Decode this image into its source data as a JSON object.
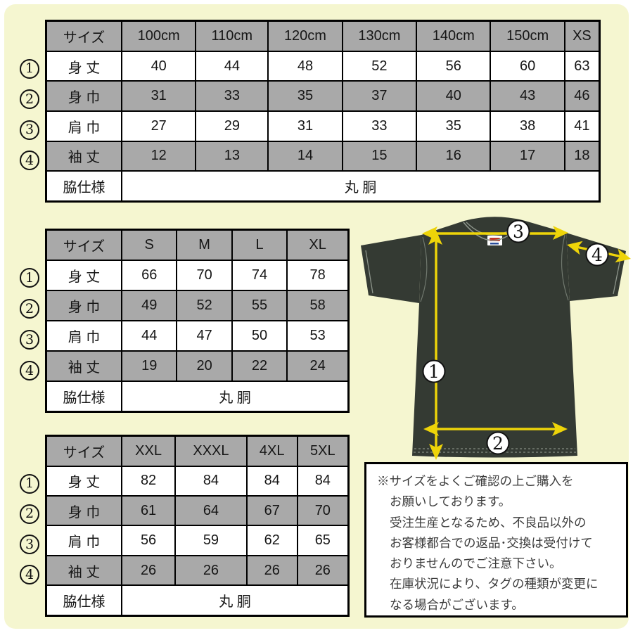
{
  "colors": {
    "background": "#f5f6d0",
    "row_shade": "#a9a9a9",
    "table_border": "#000000",
    "shirt": "#343a33",
    "arrow_yellow": "#eed409",
    "stitch": "#8d958b"
  },
  "marks": [
    "1",
    "2",
    "3",
    "4"
  ],
  "tables": [
    {
      "name": "kids-xs",
      "header": [
        "サイズ",
        "100cm",
        "110cm",
        "120cm",
        "130cm",
        "140cm",
        "150cm",
        "XS"
      ],
      "rows": [
        {
          "label": "身 丈",
          "values": [
            "40",
            "44",
            "48",
            "52",
            "56",
            "60",
            "63"
          ]
        },
        {
          "label": "身 巾",
          "values": [
            "31",
            "33",
            "35",
            "37",
            "40",
            "43",
            "46"
          ]
        },
        {
          "label": "肩 巾",
          "values": [
            "27",
            "29",
            "31",
            "33",
            "35",
            "38",
            "41"
          ]
        },
        {
          "label": "袖 丈",
          "values": [
            "12",
            "13",
            "14",
            "15",
            "16",
            "17",
            "18"
          ]
        }
      ],
      "spec_label": "脇仕様",
      "spec_value": "丸 胴"
    },
    {
      "name": "s-xl",
      "header": [
        "サイズ",
        "S",
        "M",
        "L",
        "XL"
      ],
      "rows": [
        {
          "label": "身 丈",
          "values": [
            "66",
            "70",
            "74",
            "78"
          ]
        },
        {
          "label": "身 巾",
          "values": [
            "49",
            "52",
            "55",
            "58"
          ]
        },
        {
          "label": "肩 巾",
          "values": [
            "44",
            "47",
            "50",
            "53"
          ]
        },
        {
          "label": "袖 丈",
          "values": [
            "19",
            "20",
            "22",
            "24"
          ]
        }
      ],
      "spec_label": "脇仕様",
      "spec_value": "丸 胴"
    },
    {
      "name": "xxl-5xl",
      "header": [
        "サイズ",
        "XXL",
        "XXXL",
        "4XL",
        "5XL"
      ],
      "rows": [
        {
          "label": "身 丈",
          "values": [
            "82",
            "84",
            "84",
            "84"
          ]
        },
        {
          "label": "身 巾",
          "values": [
            "61",
            "64",
            "67",
            "70"
          ]
        },
        {
          "label": "肩 巾",
          "values": [
            "56",
            "59",
            "62",
            "65"
          ]
        },
        {
          "label": "袖 丈",
          "values": [
            "26",
            "26",
            "26",
            "26"
          ]
        }
      ],
      "spec_label": "脇仕様",
      "spec_value": "丸 胴"
    }
  ],
  "note": {
    "lines": [
      "※サイズをよくご確認の上ご購入を",
      "お願いしております。",
      "受注生産となるため、不良品以外の",
      "お客様都合での返品･交換は受付けて",
      "おりませんのでご注意下さい。",
      "在庫状況により、タグの種類が変更に",
      "なる場合がございます。"
    ]
  }
}
